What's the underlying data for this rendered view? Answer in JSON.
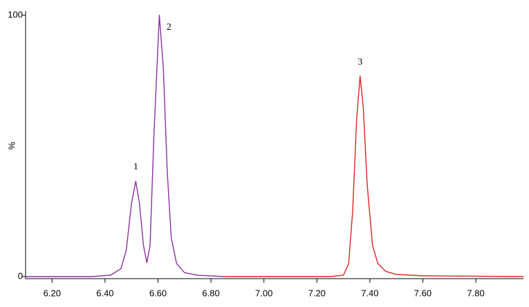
{
  "chart_data": {
    "type": "line",
    "y_label": "%",
    "xlim": [
      6.1,
      7.98
    ],
    "ylim": [
      0,
      100
    ],
    "xticks": [
      {
        "value": 6.2,
        "label": "6.20"
      },
      {
        "value": 6.4,
        "label": "6.40"
      },
      {
        "value": 6.6,
        "label": "6.60"
      },
      {
        "value": 6.8,
        "label": "6.80"
      },
      {
        "value": 7.0,
        "label": "7.00"
      },
      {
        "value": 7.2,
        "label": "7.20"
      },
      {
        "value": 7.4,
        "label": "7.40"
      },
      {
        "value": 7.6,
        "label": "7.60"
      },
      {
        "value": 7.8,
        "label": "7.80"
      }
    ],
    "yticks": [
      0,
      100
    ],
    "grid": false,
    "series": [
      {
        "color": "#8b2fa0",
        "x": [
          6.1,
          6.35,
          6.42,
          6.46,
          6.48,
          6.5,
          6.516,
          6.53,
          6.545,
          6.558,
          6.57,
          6.585,
          6.605,
          6.62,
          6.635,
          6.65,
          6.67,
          6.7,
          6.75,
          6.85
        ],
        "values": [
          0,
          0,
          0.5,
          3,
          10,
          28,
          36.5,
          28,
          12,
          5.3,
          12,
          55,
          100,
          80,
          40,
          15,
          5,
          1.5,
          0.5,
          0
        ]
      },
      {
        "color": "#e02020",
        "x": [
          6.85,
          7.25,
          7.3,
          7.32,
          7.335,
          7.35,
          7.363,
          7.375,
          7.39,
          7.41,
          7.43,
          7.46,
          7.5,
          7.6,
          7.98
        ],
        "values": [
          0,
          0,
          0.5,
          5,
          25,
          60,
          76.7,
          65,
          35,
          12,
          5,
          2,
          0.8,
          0.3,
          0
        ]
      }
    ],
    "annotations": [
      {
        "text": "1",
        "x": 6.516,
        "y": 36.5
      },
      {
        "text": "2",
        "x": 6.605,
        "y": 100
      },
      {
        "text": "3",
        "x": 7.363,
        "y": 76.7
      }
    ]
  }
}
